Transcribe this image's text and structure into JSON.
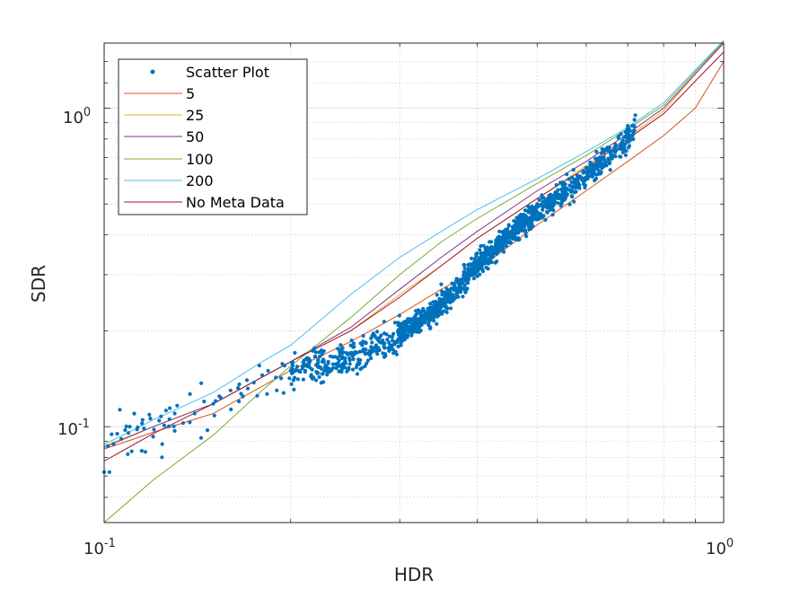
{
  "chart_data": {
    "type": "scatter",
    "xlabel": "HDR",
    "ylabel": "SDR",
    "xscale": "log",
    "yscale": "log",
    "xlim": [
      0.1,
      1.0
    ],
    "ylim": [
      0.05,
      1.6
    ],
    "grid": true,
    "minor_grid": true,
    "legend_location": "top-left",
    "x_ticks": [
      {
        "value": 0.1,
        "base": "10",
        "exp": "-1"
      },
      {
        "value": 1.0,
        "base": "10",
        "exp": "0"
      }
    ],
    "y_ticks": [
      {
        "value": 0.1,
        "base": "10",
        "exp": "-1"
      },
      {
        "value": 1.0,
        "base": "10",
        "exp": "0"
      }
    ],
    "scatter": {
      "name": "Scatter Plot",
      "color": "#0072BD",
      "anchor_points": [
        [
          0.1,
          0.072
        ],
        [
          0.102,
          0.072
        ],
        [
          0.105,
          0.095
        ],
        [
          0.106,
          0.113
        ],
        [
          0.11,
          0.1
        ],
        [
          0.113,
          0.098
        ],
        [
          0.115,
          0.084
        ],
        [
          0.12,
          0.093
        ],
        [
          0.125,
          0.101
        ],
        [
          0.13,
          0.097
        ],
        [
          0.13,
          0.11
        ],
        [
          0.14,
          0.11
        ],
        [
          0.145,
          0.12
        ],
        [
          0.15,
          0.118
        ],
        [
          0.16,
          0.13
        ],
        [
          0.165,
          0.12
        ],
        [
          0.17,
          0.14
        ],
        [
          0.18,
          0.145
        ],
        [
          0.19,
          0.13
        ],
        [
          0.2,
          0.15
        ],
        [
          0.21,
          0.155
        ],
        [
          0.23,
          0.16
        ],
        [
          0.25,
          0.18
        ],
        [
          0.27,
          0.19
        ],
        [
          0.3,
          0.21
        ],
        [
          0.32,
          0.23
        ],
        [
          0.35,
          0.28
        ],
        [
          0.4,
          0.35
        ],
        [
          0.45,
          0.43
        ],
        [
          0.5,
          0.5
        ],
        [
          0.55,
          0.57
        ],
        [
          0.6,
          0.65
        ],
        [
          0.65,
          0.75
        ],
        [
          0.7,
          0.88
        ],
        [
          0.72,
          0.95
        ]
      ],
      "trend": [
        [
          0.1,
          0.084
        ],
        [
          0.15,
          0.118
        ],
        [
          0.2,
          0.146
        ],
        [
          0.25,
          0.165
        ],
        [
          0.3,
          0.195
        ],
        [
          0.35,
          0.24
        ],
        [
          0.4,
          0.32
        ],
        [
          0.45,
          0.4
        ],
        [
          0.5,
          0.47
        ],
        [
          0.55,
          0.54
        ],
        [
          0.6,
          0.61
        ],
        [
          0.65,
          0.7
        ],
        [
          0.72,
          0.86
        ]
      ],
      "density": [
        {
          "x_range": [
            0.1,
            0.2
          ],
          "count": 55
        },
        {
          "x_range": [
            0.2,
            0.3
          ],
          "count": 260
        },
        {
          "x_range": [
            0.3,
            0.5
          ],
          "count": 850
        },
        {
          "x_range": [
            0.5,
            0.72
          ],
          "count": 350
        }
      ]
    },
    "series": [
      {
        "name": "5",
        "color": "#D95319",
        "x": [
          0.1,
          0.12,
          0.15,
          0.2,
          0.25,
          0.3,
          0.35,
          0.4,
          0.5,
          0.6,
          0.7,
          0.8,
          0.9,
          1.0
        ],
        "y": [
          0.085,
          0.096,
          0.11,
          0.15,
          0.185,
          0.225,
          0.27,
          0.31,
          0.43,
          0.55,
          0.68,
          0.82,
          1.0,
          1.4
        ]
      },
      {
        "name": "25",
        "color": "#EDB120",
        "x": [
          0.1,
          0.12,
          0.15,
          0.2,
          0.25,
          0.3,
          0.35,
          0.4,
          0.5,
          0.6,
          0.7,
          0.8,
          1.0
        ],
        "y": [
          0.087,
          0.1,
          0.118,
          0.16,
          0.2,
          0.26,
          0.32,
          0.39,
          0.52,
          0.66,
          0.81,
          0.98,
          1.62
        ]
      },
      {
        "name": "50",
        "color": "#7E2F8E",
        "x": [
          0.1,
          0.12,
          0.15,
          0.2,
          0.25,
          0.3,
          0.35,
          0.4,
          0.5,
          0.6,
          0.7,
          0.8,
          1.0
        ],
        "y": [
          0.086,
          0.1,
          0.118,
          0.16,
          0.205,
          0.27,
          0.34,
          0.41,
          0.55,
          0.68,
          0.83,
          1.0,
          1.6
        ]
      },
      {
        "name": "100",
        "color": "#77AC30",
        "x": [
          0.1,
          0.12,
          0.15,
          0.18,
          0.2,
          0.25,
          0.3,
          0.35,
          0.4,
          0.5,
          0.6,
          0.7,
          0.8,
          1.0
        ],
        "y": [
          0.05,
          0.068,
          0.094,
          0.13,
          0.155,
          0.22,
          0.3,
          0.38,
          0.45,
          0.58,
          0.71,
          0.86,
          1.02,
          1.62
        ]
      },
      {
        "name": "200",
        "color": "#4DBEEE",
        "x": [
          0.1,
          0.12,
          0.15,
          0.18,
          0.2,
          0.25,
          0.3,
          0.35,
          0.4,
          0.5,
          0.6,
          0.7,
          0.8,
          1.0
        ],
        "y": [
          0.088,
          0.105,
          0.128,
          0.16,
          0.18,
          0.26,
          0.34,
          0.41,
          0.48,
          0.6,
          0.73,
          0.87,
          1.04,
          1.63
        ]
      },
      {
        "name": "No Meta Data",
        "color": "#A2142F",
        "x": [
          0.1,
          0.12,
          0.15,
          0.2,
          0.25,
          0.3,
          0.35,
          0.4,
          0.5,
          0.6,
          0.7,
          0.8,
          1.0
        ],
        "y": [
          0.078,
          0.095,
          0.118,
          0.16,
          0.2,
          0.255,
          0.32,
          0.39,
          0.52,
          0.65,
          0.8,
          0.96,
          1.5
        ]
      }
    ]
  }
}
